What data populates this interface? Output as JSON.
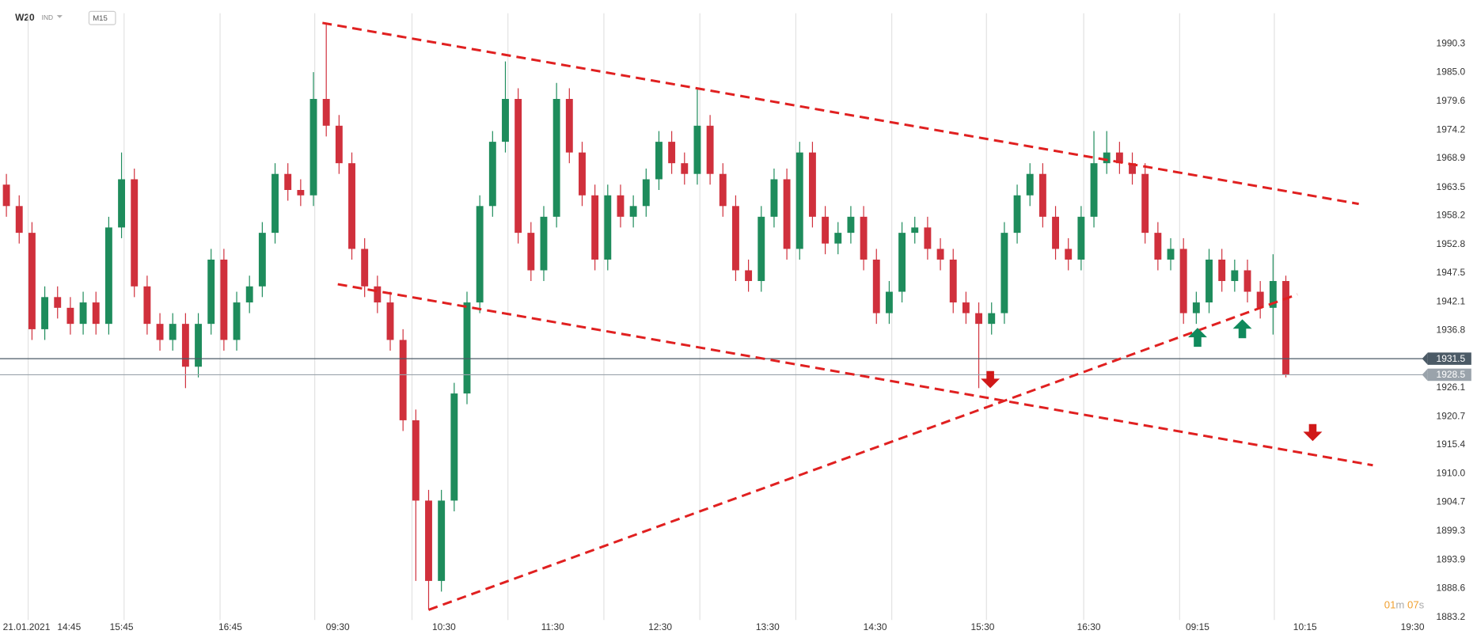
{
  "chart_data": {
    "type": "candlestick",
    "symbol": "W20",
    "symbol_kind": "IND",
    "timeframe": "M15",
    "date_label": "21.01.2021",
    "up_color": "#1e8c5c",
    "down_color": "#d0303c",
    "open": [
      1964,
      1960,
      1955,
      1937,
      1943,
      1941,
      1938,
      1942,
      1938,
      1956,
      1965,
      1945,
      1938,
      1935,
      1938,
      1930,
      1938,
      1950,
      1935,
      1942,
      1945,
      1955,
      1966,
      1963,
      1962,
      1980,
      1975,
      1968,
      1952,
      1945,
      1942,
      1935,
      1920,
      1905,
      1890,
      1905,
      1925,
      1942,
      1960,
      1972,
      1980,
      1955,
      1948,
      1958,
      1980,
      1970,
      1962,
      1950,
      1962,
      1958,
      1960,
      1965,
      1972,
      1968,
      1966,
      1975,
      1966,
      1960,
      1948,
      1946,
      1958,
      1965,
      1952,
      1970,
      1958,
      1953,
      1955,
      1958,
      1950,
      1940,
      1944,
      1955,
      1956,
      1952,
      1950,
      1942,
      1940,
      1938,
      1940,
      1955,
      1962,
      1966,
      1958,
      1952,
      1950,
      1958,
      1968,
      1970,
      1968,
      1966,
      1955,
      1950,
      1952,
      1940,
      1942,
      1950,
      1946,
      1948,
      1944,
      1941,
      1946
    ],
    "high": [
      1966,
      1962,
      1957,
      1945,
      1945,
      1943,
      1944,
      1944,
      1958,
      1970,
      1967,
      1947,
      1940,
      1940,
      1940,
      1940,
      1952,
      1952,
      1944,
      1947,
      1957,
      1968,
      1968,
      1965,
      1985,
      1994,
      1977,
      1970,
      1954,
      1947,
      1944,
      1937,
      1922,
      1907,
      1907,
      1927,
      1944,
      1962,
      1974,
      1987,
      1982,
      1957,
      1960,
      1983,
      1982,
      1972,
      1964,
      1964,
      1964,
      1962,
      1967,
      1974,
      1974,
      1970,
      1982,
      1977,
      1968,
      1962,
      1950,
      1960,
      1967,
      1967,
      1972,
      1972,
      1960,
      1957,
      1960,
      1960,
      1952,
      1946,
      1957,
      1958,
      1958,
      1954,
      1952,
      1944,
      1942,
      1942,
      1957,
      1964,
      1968,
      1968,
      1960,
      1954,
      1960,
      1974,
      1974,
      1972,
      1970,
      1968,
      1957,
      1954,
      1954,
      1944,
      1952,
      1952,
      1950,
      1950,
      1946,
      1951,
      1947
    ],
    "low": [
      1958,
      1953,
      1935,
      1935,
      1939,
      1936,
      1936,
      1936,
      1936,
      1954,
      1943,
      1936,
      1933,
      1933,
      1926,
      1928,
      1936,
      1933,
      1933,
      1940,
      1943,
      1953,
      1961,
      1960,
      1960,
      1973,
      1966,
      1950,
      1943,
      1940,
      1933,
      1918,
      1890,
      1884.6,
      1888,
      1903,
      1923,
      1940,
      1958,
      1970,
      1953,
      1946,
      1946,
      1956,
      1968,
      1960,
      1948,
      1948,
      1956,
      1956,
      1958,
      1963,
      1966,
      1964,
      1964,
      1964,
      1958,
      1946,
      1944,
      1944,
      1956,
      1950,
      1950,
      1956,
      1951,
      1951,
      1953,
      1948,
      1938,
      1938,
      1942,
      1953,
      1950,
      1948,
      1940,
      1938,
      1926,
      1936,
      1938,
      1953,
      1960,
      1956,
      1950,
      1948,
      1948,
      1956,
      1966,
      1966,
      1964,
      1953,
      1948,
      1948,
      1938,
      1938,
      1940,
      1944,
      1944,
      1942,
      1939,
      1936,
      1928
    ],
    "close": [
      1960,
      1955,
      1937,
      1943,
      1941,
      1938,
      1942,
      1938,
      1956,
      1965,
      1945,
      1938,
      1935,
      1938,
      1930,
      1938,
      1950,
      1935,
      1942,
      1945,
      1955,
      1966,
      1963,
      1962,
      1980,
      1975,
      1968,
      1952,
      1945,
      1942,
      1935,
      1920,
      1905,
      1890,
      1905,
      1925,
      1942,
      1960,
      1972,
      1980,
      1955,
      1948,
      1958,
      1980,
      1970,
      1962,
      1950,
      1962,
      1958,
      1960,
      1965,
      1972,
      1968,
      1966,
      1975,
      1966,
      1960,
      1948,
      1946,
      1958,
      1965,
      1952,
      1970,
      1958,
      1953,
      1955,
      1958,
      1950,
      1940,
      1944,
      1955,
      1956,
      1952,
      1950,
      1942,
      1940,
      1938,
      1940,
      1955,
      1962,
      1966,
      1958,
      1952,
      1950,
      1958,
      1968,
      1970,
      1968,
      1966,
      1955,
      1950,
      1952,
      1940,
      1942,
      1950,
      1946,
      1948,
      1944,
      1941,
      1946,
      1928.5
    ],
    "xlim": [
      0,
      111
    ],
    "xticks": [
      {
        "value": 5.4,
        "label": "14:45"
      },
      {
        "value": 9.5,
        "label": "15:45"
      },
      {
        "value": 18.0,
        "label": "16:45"
      },
      {
        "value": 26.4,
        "label": "09:30"
      },
      {
        "value": 34.7,
        "label": "10:30"
      },
      {
        "value": 43.2,
        "label": "11:30"
      },
      {
        "value": 51.6,
        "label": "12:30"
      },
      {
        "value": 60.0,
        "label": "13:30"
      },
      {
        "value": 68.4,
        "label": "14:30"
      },
      {
        "value": 76.8,
        "label": "15:30"
      },
      {
        "value": 85.1,
        "label": "16:30"
      },
      {
        "value": 93.6,
        "label": "09:15"
      },
      {
        "value": 102.0,
        "label": "10:15"
      },
      {
        "value": 110.4,
        "label": "19:30"
      }
    ],
    "xgrid": [
      2.2,
      9.7,
      17.2,
      24.6,
      32.2,
      39.7,
      47.2,
      54.7,
      62.2,
      69.7,
      77.1,
      84.7,
      92.2,
      99.6
    ],
    "ylim": [
      1882.7,
      1996.0
    ],
    "yticks": [
      1883.2,
      1888.6,
      1893.9,
      1899.3,
      1904.7,
      {
        "value": 1910,
        "label": "1910.0"
      },
      1915.4,
      1920.7,
      1926.1,
      1936.8,
      1942.1,
      1947.5,
      1952.8,
      1958.2,
      1963.5,
      1968.9,
      1974.2,
      1979.6,
      {
        "value": 1985,
        "label": "1985.0"
      },
      1990.3
    ],
    "price_lines": [
      {
        "value": 1931.5,
        "color": "#4b5a66"
      },
      {
        "value": 1928.5,
        "color": "#9aa3ab"
      }
    ],
    "trendline_color": "#e02020",
    "trendlines": [
      {
        "x": [
          25.2,
          106.2
        ],
        "y": [
          1994.2,
          1960.4
        ]
      },
      {
        "x": [
          26.4,
          107.3
        ],
        "y": [
          1945.4,
          1911.6
        ]
      },
      {
        "x": [
          33.5,
          101.4
        ],
        "y": [
          1884.6,
          1943.5
        ]
      }
    ],
    "signals": [
      {
        "x": 77.4,
        "value": 1926.0,
        "direction": "down",
        "color": "#d01818"
      },
      {
        "x": 102.6,
        "value": 1916.1,
        "direction": "down",
        "color": "#d01818"
      },
      {
        "x": 93.6,
        "value": 1936.2,
        "direction": "up",
        "color": "#108a5c"
      },
      {
        "x": 97.1,
        "value": 1937.8,
        "direction": "up",
        "color": "#108a5c"
      }
    ],
    "timer": {
      "minutes": "01",
      "minutes_unit": "m",
      "seconds": "07",
      "seconds_unit": "s"
    }
  }
}
